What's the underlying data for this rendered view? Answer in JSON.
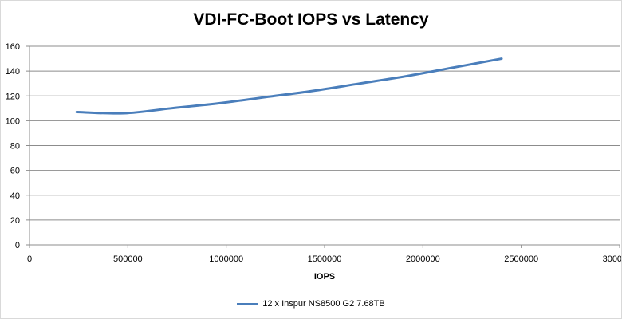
{
  "chart_data": {
    "type": "line",
    "title": "VDI-FC-Boot IOPS vs Latency",
    "xlabel": "IOPS",
    "ylabel": "",
    "xlim": [
      0,
      3000000
    ],
    "ylim": [
      0,
      160
    ],
    "x_ticks": [
      "0",
      "500000",
      "1000000",
      "1500000",
      "2000000",
      "2500000",
      "3000000"
    ],
    "y_ticks": [
      "0",
      "20",
      "40",
      "60",
      "80",
      "100",
      "120",
      "140",
      "160"
    ],
    "grid": "horizontal",
    "legend_position": "bottom",
    "series": [
      {
        "name": "12 x Inspur NS8500 G2 7.68TB",
        "color": "#4a7ebb",
        "x": [
          240000,
          480000,
          720000,
          960000,
          1200000,
          1440000,
          1680000,
          1920000,
          2160000,
          2400000
        ],
        "y": [
          107,
          106,
          110,
          114,
          119,
          124,
          130,
          136,
          143,
          150
        ]
      }
    ]
  }
}
